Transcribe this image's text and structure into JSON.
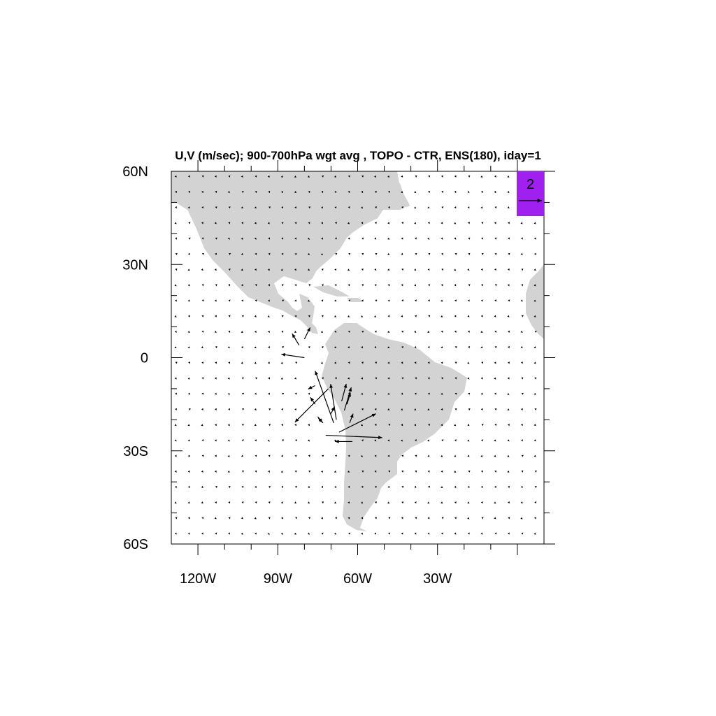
{
  "title": "U,V (m/sec); 900-700hPa wgt avg , TOPO - CTR, ENS(180), iday=1",
  "colors": {
    "land": "#d3d3d3",
    "reference_box": "#a020f0",
    "vectors": "#000000",
    "frame": "#000000"
  },
  "map": {
    "lon_range": [
      -130,
      10
    ],
    "lat_range": [
      -60,
      60
    ],
    "x_ticks": [
      {
        "lon": -120,
        "label": "120W"
      },
      {
        "lon": -90,
        "label": "90W"
      },
      {
        "lon": -60,
        "label": "60W"
      },
      {
        "lon": -30,
        "label": "30W"
      }
    ],
    "y_ticks": [
      {
        "lat": 60,
        "label": "60N"
      },
      {
        "lat": 30,
        "label": "30N"
      },
      {
        "lat": 0,
        "label": "0"
      },
      {
        "lat": -30,
        "label": "30S"
      },
      {
        "lat": -60,
        "label": "60S"
      }
    ]
  },
  "reference_vector": {
    "magnitude": 2,
    "label": "2"
  },
  "chart_data": {
    "type": "vector_field",
    "units": "m/sec",
    "grid_spacing_deg": 5,
    "background_vector_magnitude": "near zero",
    "vectors": [
      {
        "lon": -72,
        "lat": -25,
        "u": 4.9,
        "v": -0.2
      },
      {
        "lon": -67,
        "lat": -24,
        "u": 3.2,
        "v": 1.6
      },
      {
        "lon": -71,
        "lat": -10,
        "u": -2.9,
        "v": -2.9
      },
      {
        "lon": -69,
        "lat": -21,
        "u": -1.6,
        "v": 4.5
      },
      {
        "lon": -68,
        "lat": -20,
        "u": -0.5,
        "v": 3.1
      },
      {
        "lon": -65,
        "lat": -17,
        "u": 0.6,
        "v": 2.0
      },
      {
        "lon": -66,
        "lat": -14,
        "u": 0.4,
        "v": 1.5
      },
      {
        "lon": -62,
        "lat": -27,
        "u": -1.5,
        "v": 0.0
      },
      {
        "lon": -64,
        "lat": -15,
        "u": 0.3,
        "v": 1.0
      },
      {
        "lon": -80,
        "lat": 0,
        "u": -2.0,
        "v": 0.3
      },
      {
        "lon": -82,
        "lat": 4,
        "u": -0.6,
        "v": 1.0
      },
      {
        "lon": -80,
        "lat": 6,
        "u": 0.5,
        "v": 1.0
      },
      {
        "lon": -76,
        "lat": -15,
        "u": -0.4,
        "v": 0.6
      },
      {
        "lon": -76,
        "lat": -9,
        "u": -0.6,
        "v": -0.3
      },
      {
        "lon": -75,
        "lat": -19,
        "u": 0.4,
        "v": -0.5
      },
      {
        "lon": -70,
        "lat": -18,
        "u": 0.3,
        "v": 0.6
      },
      {
        "lon": -73,
        "lat": -21,
        "u": -0.4,
        "v": 0.4
      },
      {
        "lon": -63,
        "lat": -21,
        "u": 0.3,
        "v": 0.8
      }
    ]
  }
}
